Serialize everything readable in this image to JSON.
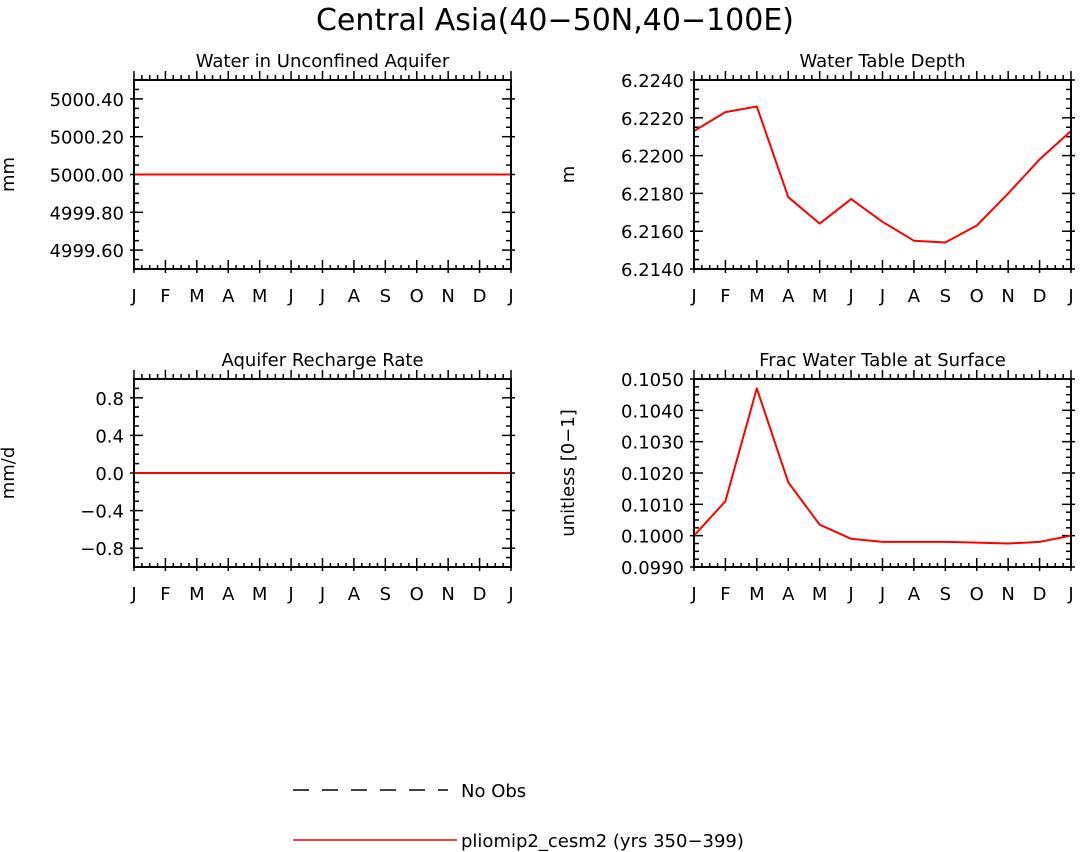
{
  "page": {
    "title": "Central Asia(40−50N,40−100E)"
  },
  "legend": {
    "entries": [
      {
        "label": "No Obs",
        "style": "dashed",
        "color": "#000000"
      },
      {
        "label": "pliomip2_cesm2 (yrs 350−399)",
        "style": "solid",
        "color": "#ff0000"
      }
    ]
  },
  "chart_data": [
    {
      "type": "line",
      "title": "Water in Unconfined Aquifer",
      "xlabel": "",
      "ylabel": "mm",
      "categories": [
        "J",
        "F",
        "M",
        "A",
        "M",
        "J",
        "J",
        "A",
        "S",
        "O",
        "N",
        "D",
        "J"
      ],
      "ylim": [
        4999.5,
        5000.5
      ],
      "yticks": [
        4999.6,
        4999.8,
        5000.0,
        5000.2,
        5000.4
      ],
      "ytick_labels": [
        "4999.60",
        "4999.80",
        "5000.00",
        "5000.20",
        "5000.40"
      ],
      "yminor_step": 0.05,
      "series": [
        {
          "color": "#ff0000",
          "values": [
            5000.0,
            5000.0,
            5000.0,
            5000.0,
            5000.0,
            5000.0,
            5000.0,
            5000.0,
            5000.0,
            5000.0,
            5000.0,
            5000.0,
            5000.0
          ]
        }
      ]
    },
    {
      "type": "line",
      "title": "Water Table Depth",
      "xlabel": "",
      "ylabel": "m",
      "categories": [
        "J",
        "F",
        "M",
        "A",
        "M",
        "J",
        "J",
        "A",
        "S",
        "O",
        "N",
        "D",
        "J"
      ],
      "ylim": [
        6.214,
        6.224
      ],
      "yticks": [
        6.214,
        6.216,
        6.218,
        6.22,
        6.222,
        6.224
      ],
      "ytick_labels": [
        "6.2140",
        "6.2160",
        "6.2180",
        "6.2200",
        "6.2220",
        "6.2240"
      ],
      "yminor_step": 0.0005,
      "series": [
        {
          "color": "#ff0000",
          "values": [
            6.2213,
            6.2223,
            6.2226,
            6.2178,
            6.2164,
            6.2177,
            6.2165,
            6.2155,
            6.2154,
            6.2163,
            6.218,
            6.2198,
            6.2213
          ]
        }
      ]
    },
    {
      "type": "line",
      "title": "Aquifer Recharge Rate",
      "xlabel": "",
      "ylabel": "mm/d",
      "categories": [
        "J",
        "F",
        "M",
        "A",
        "M",
        "J",
        "J",
        "A",
        "S",
        "O",
        "N",
        "D",
        "J"
      ],
      "ylim": [
        -1.0,
        1.0
      ],
      "yticks": [
        -0.8,
        -0.4,
        0.0,
        0.4,
        0.8
      ],
      "ytick_labels": [
        "−0.8",
        "−0.4",
        "0.0",
        "0.4",
        "0.8"
      ],
      "yminor_step": 0.1,
      "series": [
        {
          "color": "#ff0000",
          "values": [
            0,
            0,
            0,
            0,
            0,
            0,
            0,
            0,
            0,
            0,
            0,
            0,
            0
          ]
        }
      ]
    },
    {
      "type": "line",
      "title": "Frac Water Table at Surface",
      "xlabel": "",
      "ylabel": "unitless [0−1]",
      "categories": [
        "J",
        "F",
        "M",
        "A",
        "M",
        "J",
        "J",
        "A",
        "S",
        "O",
        "N",
        "D",
        "J"
      ],
      "ylim": [
        0.099,
        0.105
      ],
      "yticks": [
        0.099,
        0.1,
        0.101,
        0.102,
        0.103,
        0.104,
        0.105
      ],
      "ytick_labels": [
        "0.0990",
        "0.1000",
        "0.1010",
        "0.1020",
        "0.1030",
        "0.1040",
        "0.1050"
      ],
      "yminor_step": 0.00025,
      "series": [
        {
          "color": "#ff0000",
          "values": [
            0.1,
            0.1011,
            0.1047,
            0.1017,
            0.10035,
            0.0999,
            0.0998,
            0.0998,
            0.0998,
            0.09978,
            0.09975,
            0.0998,
            0.1
          ]
        }
      ]
    }
  ]
}
